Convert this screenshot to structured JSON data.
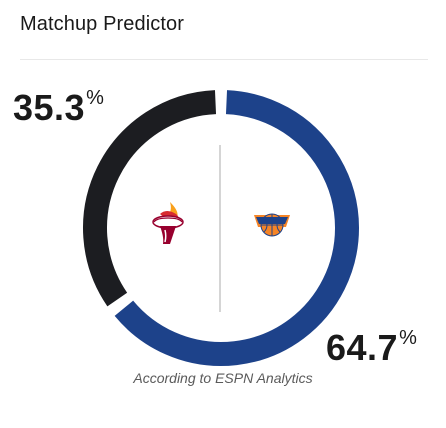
{
  "title": "Matchup Predictor",
  "source": "According to ESPN Analytics",
  "teams": {
    "away": {
      "percent": "35.3",
      "symbol": "%",
      "logo_icon": "miami-heat-logo-icon",
      "color": "#1c1d21"
    },
    "home": {
      "percent": "64.7",
      "symbol": "%",
      "logo_icon": "new-york-knicks-logo-icon",
      "color": "#1d428a"
    }
  },
  "divider_color": "#c7c7c7"
}
